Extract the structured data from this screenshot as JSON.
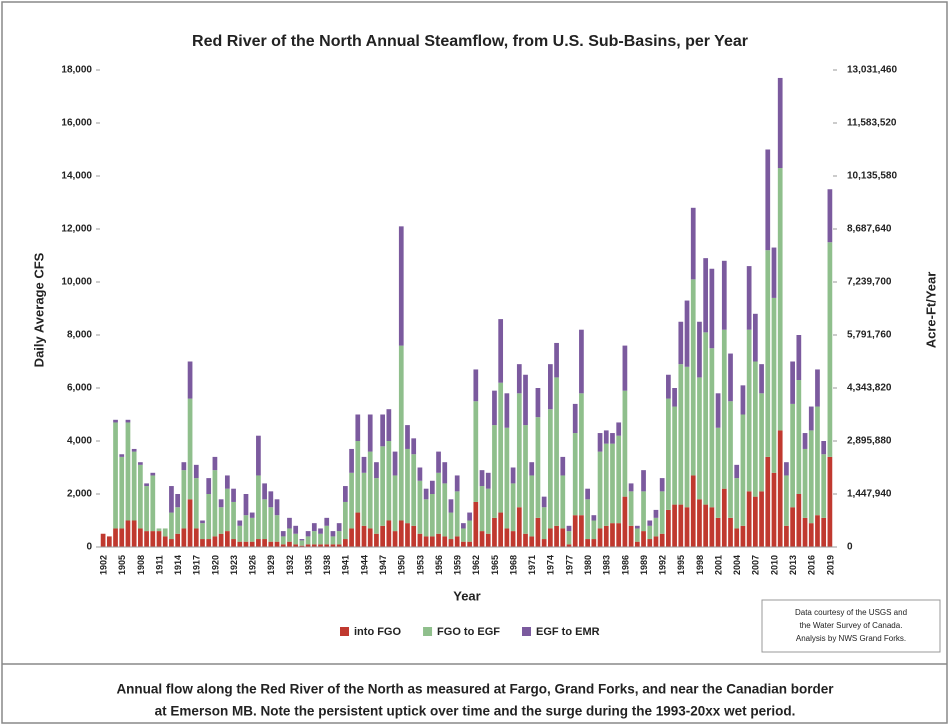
{
  "chart_data": {
    "type": "stacked_bar",
    "title": "Red River of the North Annual Steamflow, from U.S. Sub-Basins, per Year",
    "x_label": "Year",
    "y_label": "Daily Average CFS",
    "y2_label": "Acre-Ft/Year",
    "categories": [
      "1902",
      null,
      null,
      "1905",
      null,
      null,
      "1908",
      null,
      null,
      "1911",
      null,
      null,
      "1914",
      null,
      null,
      "1917",
      null,
      null,
      "1920",
      null,
      null,
      "1923",
      null,
      null,
      "1926",
      null,
      null,
      "1929",
      null,
      null,
      "1932",
      null,
      null,
      "1935",
      null,
      null,
      "1938",
      null,
      null,
      "1941",
      null,
      null,
      "1944",
      null,
      null,
      "1947",
      null,
      null,
      "1950",
      null,
      null,
      "1953",
      null,
      null,
      "1956",
      null,
      null,
      "1959",
      null,
      null,
      "1962",
      null,
      null,
      "1965",
      null,
      null,
      "1968",
      null,
      null,
      "1971",
      null,
      null,
      "1974",
      null,
      null,
      "1977",
      null,
      null,
      "1980",
      null,
      null,
      "1983",
      null,
      null,
      "1986",
      null,
      null,
      "1989",
      null,
      null,
      "1992",
      null,
      null,
      "1995",
      null,
      null,
      "1998",
      null,
      null,
      "2001",
      null,
      null,
      "2004",
      null,
      null,
      "2007",
      null,
      null,
      "2010",
      null,
      null,
      "2013",
      null,
      null,
      "2016",
      null,
      null,
      "2019"
    ],
    "series": [
      {
        "name": "into FGO",
        "color": "#c0392f",
        "values": [
          500,
          400,
          700,
          700,
          1000,
          1000,
          700,
          600,
          600,
          600,
          400,
          300,
          500,
          700,
          1800,
          700,
          300,
          300,
          400,
          500,
          600,
          300,
          200,
          200,
          200,
          300,
          300,
          200,
          200,
          100,
          200,
          100,
          50,
          100,
          100,
          100,
          100,
          100,
          100,
          300,
          700,
          1300,
          800,
          700,
          500,
          800,
          1000,
          600,
          1000,
          900,
          800,
          500,
          400,
          400,
          500,
          400,
          300,
          400,
          200,
          200,
          1700,
          600,
          500,
          1100,
          1300,
          700,
          600,
          1500,
          500,
          400,
          1100,
          300,
          700,
          800,
          700,
          100,
          1200,
          1200,
          300,
          300,
          700,
          800,
          900,
          900,
          1900,
          800,
          200,
          600,
          300,
          400,
          500,
          1400,
          1600,
          1600,
          1500,
          2700,
          1800,
          1600,
          1500,
          1100,
          2200,
          1100,
          700,
          800,
          2100,
          1900,
          2100,
          3400,
          2800,
          4400,
          800,
          1500,
          2000,
          1100,
          900,
          1200,
          1100,
          3400
        ]
      },
      {
        "name": "FGO to EGF",
        "color": "#8fbf8c",
        "values": [
          0,
          0,
          4000,
          2700,
          3700,
          2600,
          2400,
          1700,
          2100,
          100,
          300,
          1000,
          1000,
          2200,
          3800,
          1900,
          600,
          1700,
          2500,
          1000,
          1600,
          1400,
          600,
          1000,
          900,
          2400,
          1500,
          1300,
          1000,
          300,
          500,
          400,
          200,
          300,
          500,
          400,
          700,
          300,
          500,
          1400,
          2100,
          2700,
          2000,
          2900,
          2100,
          3000,
          3000,
          2100,
          6600,
          2800,
          2700,
          2000,
          1400,
          1600,
          2300,
          2000,
          1000,
          1700,
          500,
          800,
          3800,
          1700,
          1700,
          3500,
          4900,
          3800,
          1800,
          4300,
          4100,
          2300,
          3800,
          1200,
          4500,
          5600,
          2000,
          500,
          3100,
          4600,
          1500,
          700,
          2900,
          3100,
          3000,
          3300,
          4000,
          1300,
          500,
          1500,
          500,
          700,
          1600,
          4200,
          3700,
          5300,
          5300,
          7400,
          4600,
          6500,
          6000,
          3400,
          6000,
          4400,
          1900,
          4200,
          6100,
          5100,
          3700,
          7800,
          6600,
          9900,
          1900,
          3900,
          4300,
          2600,
          3500,
          4100,
          2400,
          8100
        ]
      },
      {
        "name": "EGF to EMR",
        "color": "#7b5a9e",
        "values": [
          0,
          0,
          100,
          100,
          100,
          100,
          100,
          100,
          100,
          0,
          0,
          1000,
          500,
          300,
          1400,
          500,
          100,
          600,
          500,
          300,
          500,
          500,
          200,
          800,
          200,
          1500,
          600,
          600,
          600,
          200,
          400,
          300,
          50,
          200,
          300,
          200,
          300,
          200,
          300,
          600,
          900,
          1000,
          600,
          1400,
          600,
          1200,
          1200,
          900,
          4500,
          900,
          600,
          500,
          400,
          500,
          800,
          800,
          500,
          600,
          200,
          300,
          1200,
          600,
          600,
          1300,
          2400,
          1300,
          600,
          1100,
          1900,
          500,
          1100,
          400,
          1700,
          1300,
          700,
          200,
          1100,
          2400,
          400,
          200,
          700,
          500,
          400,
          500,
          1700,
          300,
          100,
          800,
          200,
          300,
          500,
          900,
          700,
          1600,
          2500,
          2700,
          2100,
          2800,
          3000,
          1300,
          2600,
          1800,
          500,
          1100,
          2400,
          1800,
          1100,
          3800,
          1900,
          3400,
          500,
          1600,
          1700,
          600,
          900,
          1400,
          500,
          2000
        ]
      }
    ],
    "ylim": [
      0,
      18000
    ],
    "yticks": [
      0,
      {
        "value": 2000,
        "label": "2,000"
      },
      {
        "value": 4000,
        "label": "4,000"
      },
      {
        "value": 6000,
        "label": "6,000"
      },
      {
        "value": 8000,
        "label": "8,000"
      },
      {
        "value": 10000,
        "label": "10,000"
      },
      {
        "value": 12000,
        "label": "12,000"
      },
      {
        "value": 14000,
        "label": "14,000"
      },
      {
        "value": 16000,
        "label": "16,000"
      },
      {
        "value": 18000,
        "label": "18,000"
      }
    ],
    "y2lim": [
      0,
      13031460
    ],
    "y2ticks": [
      0,
      {
        "value": 1447940,
        "label": "1,447,940"
      },
      {
        "value": 2895880,
        "label": "2,895,880"
      },
      {
        "value": 4343820,
        "label": "4,343,820"
      },
      {
        "value": 5791760,
        "label": "5,791,760"
      },
      {
        "value": 7239700,
        "label": "7,239,700"
      },
      {
        "value": 8687640,
        "label": "8,687,640"
      },
      {
        "value": 10135580,
        "label": "10,135,580"
      },
      {
        "value": 11583520,
        "label": "11,583,520"
      },
      {
        "value": 13031460,
        "label": "13,031,460"
      }
    ],
    "grid": false,
    "legend": "bottom",
    "note": [
      "Data courtesy of the USGS and",
      "the Water Survey of Canada.",
      "Analysis by NWS Grand Forks."
    ],
    "caption": [
      "Annual flow along the Red River of the North as measured at Fargo, Grand Forks, and near the Canadian border",
      "at Emerson MB.  Note the persistent uptick over time and the surge during the 1993-20xx wet period."
    ]
  }
}
